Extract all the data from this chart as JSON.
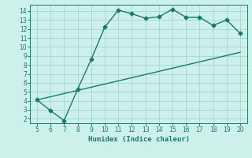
{
  "xlabel": "Humidex (Indice chaleur)",
  "xlim": [
    4.5,
    20.5
  ],
  "ylim": [
    1.5,
    14.7
  ],
  "xticks": [
    5,
    6,
    7,
    8,
    9,
    10,
    11,
    12,
    13,
    14,
    15,
    16,
    17,
    18,
    19,
    20
  ],
  "yticks": [
    2,
    3,
    4,
    5,
    6,
    7,
    8,
    9,
    10,
    11,
    12,
    13,
    14
  ],
  "curve_x": [
    5,
    6,
    7,
    8,
    9,
    10,
    11,
    12,
    13,
    14,
    15,
    16,
    17,
    18,
    19,
    20
  ],
  "curve_y": [
    4.1,
    2.9,
    1.8,
    5.3,
    8.6,
    12.2,
    14.1,
    13.7,
    13.2,
    13.35,
    14.2,
    13.3,
    13.3,
    12.4,
    13.0,
    11.5
  ],
  "line_x": [
    5,
    20
  ],
  "line_y": [
    4.1,
    9.4
  ],
  "curve_color": "#1a7a6e",
  "line_color": "#1a7a6e",
  "bg_color": "#cef0eb",
  "grid_color": "#a0d8d2",
  "tick_color": "#1a7a6e",
  "label_color": "#1a7a6e",
  "marker_size": 2.5,
  "linewidth": 1.0
}
